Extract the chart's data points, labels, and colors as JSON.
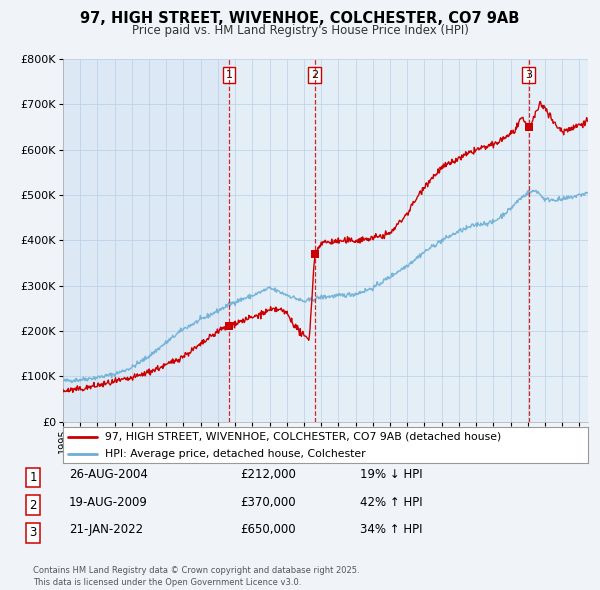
{
  "title": "97, HIGH STREET, WIVENHOE, COLCHESTER, CO7 9AB",
  "subtitle": "Price paid vs. HM Land Registry's House Price Index (HPI)",
  "legend_line1": "97, HIGH STREET, WIVENHOE, COLCHESTER, CO7 9AB (detached house)",
  "legend_line2": "HPI: Average price, detached house, Colchester",
  "red_color": "#cc0000",
  "blue_color": "#6baed6",
  "vline_color": "#cc0000",
  "background_color": "#f0f4f8",
  "plot_bg": "#dce9f5",
  "ylim": [
    0,
    800000
  ],
  "yticks": [
    0,
    100000,
    200000,
    300000,
    400000,
    500000,
    600000,
    700000,
    800000
  ],
  "ytick_labels": [
    "£0",
    "£100K",
    "£200K",
    "£300K",
    "£400K",
    "£500K",
    "£600K",
    "£700K",
    "£800K"
  ],
  "xlim_start": 1995,
  "xlim_end": 2025.5,
  "transactions": [
    {
      "num": 1,
      "date": "26-AUG-2004",
      "price": "£212,000",
      "hpi_pct": "19% ↓ HPI",
      "year": 2004.65,
      "value": 212000
    },
    {
      "num": 2,
      "date": "19-AUG-2009",
      "price": "£370,000",
      "hpi_pct": "42% ↑ HPI",
      "year": 2009.63,
      "value": 370000
    },
    {
      "num": 3,
      "date": "21-JAN-2022",
      "price": "£650,000",
      "hpi_pct": "34% ↑ HPI",
      "year": 2022.05,
      "value": 650000
    }
  ],
  "footer": "Contains HM Land Registry data © Crown copyright and database right 2025.\nThis data is licensed under the Open Government Licence v3.0.",
  "hpi_keypoints_x": [
    1995,
    1996,
    1997,
    1998,
    1999,
    2000,
    2001,
    2002,
    2003,
    2004,
    2005,
    2006,
    2007,
    2008,
    2009,
    2010,
    2011,
    2012,
    2013,
    2014,
    2015,
    2016,
    2017,
    2018,
    2019,
    2020,
    2021,
    2021.5,
    2022,
    2022.5,
    2023,
    2024,
    2025.5
  ],
  "hpi_keypoints_y": [
    90000,
    93000,
    98000,
    105000,
    120000,
    145000,
    175000,
    205000,
    225000,
    245000,
    265000,
    278000,
    295000,
    280000,
    265000,
    275000,
    278000,
    282000,
    295000,
    320000,
    345000,
    375000,
    400000,
    420000,
    435000,
    440000,
    470000,
    490000,
    505000,
    510000,
    490000,
    490000,
    505000
  ],
  "red_keypoints_x": [
    1995,
    1996,
    1997,
    1998,
    1999,
    2000,
    2001,
    2002,
    2003,
    2004,
    2004.65,
    2005,
    2006,
    2007,
    2007.5,
    2008,
    2008.5,
    2009,
    2009.3,
    2009.63,
    2010,
    2011,
    2012,
    2013,
    2014,
    2015,
    2016,
    2017,
    2018,
    2019,
    2020,
    2021,
    2021.3,
    2021.7,
    2022.05,
    2022.3,
    2022.7,
    2023,
    2023.5,
    2024,
    2025,
    2025.5
  ],
  "red_keypoints_y": [
    68000,
    72000,
    80000,
    88000,
    96000,
    110000,
    125000,
    145000,
    170000,
    200000,
    212000,
    218000,
    230000,
    245000,
    248000,
    240000,
    210000,
    188000,
    182000,
    370000,
    395000,
    398000,
    400000,
    405000,
    415000,
    460000,
    520000,
    560000,
    580000,
    600000,
    610000,
    635000,
    645000,
    670000,
    650000,
    665000,
    700000,
    695000,
    660000,
    640000,
    655000,
    665000
  ]
}
